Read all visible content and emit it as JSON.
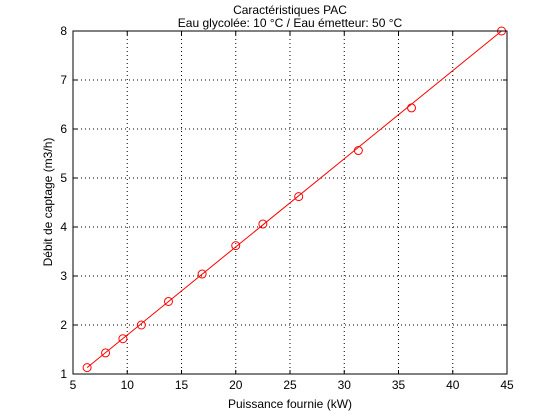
{
  "chart_data": {
    "type": "line",
    "title": "Caractéristiques PAC",
    "subtitle": "Eau glycolée: 10 °C / Eau émetteur: 50 °C",
    "xlabel": "Puissance fournie (kW)",
    "ylabel": "Débit de captage (m3/h)",
    "xlim": [
      5,
      45
    ],
    "ylim": [
      1,
      8
    ],
    "xticks": [
      5,
      10,
      15,
      20,
      25,
      30,
      35,
      40,
      45
    ],
    "yticks": [
      1,
      2,
      3,
      4,
      5,
      6,
      7,
      8
    ],
    "grid": true,
    "series": [
      {
        "color": "#ff0000",
        "marker": "circle",
        "line_x": [
          6.3,
          44.5
        ],
        "line_y": [
          1.13,
          8.0
        ],
        "x": [
          6.3,
          8.0,
          9.6,
          11.3,
          13.8,
          16.9,
          20.0,
          22.5,
          25.8,
          31.3,
          36.2,
          44.5
        ],
        "y": [
          1.13,
          1.43,
          1.72,
          2.0,
          2.48,
          3.04,
          3.62,
          4.06,
          4.62,
          5.56,
          6.43,
          8.0
        ]
      }
    ]
  }
}
